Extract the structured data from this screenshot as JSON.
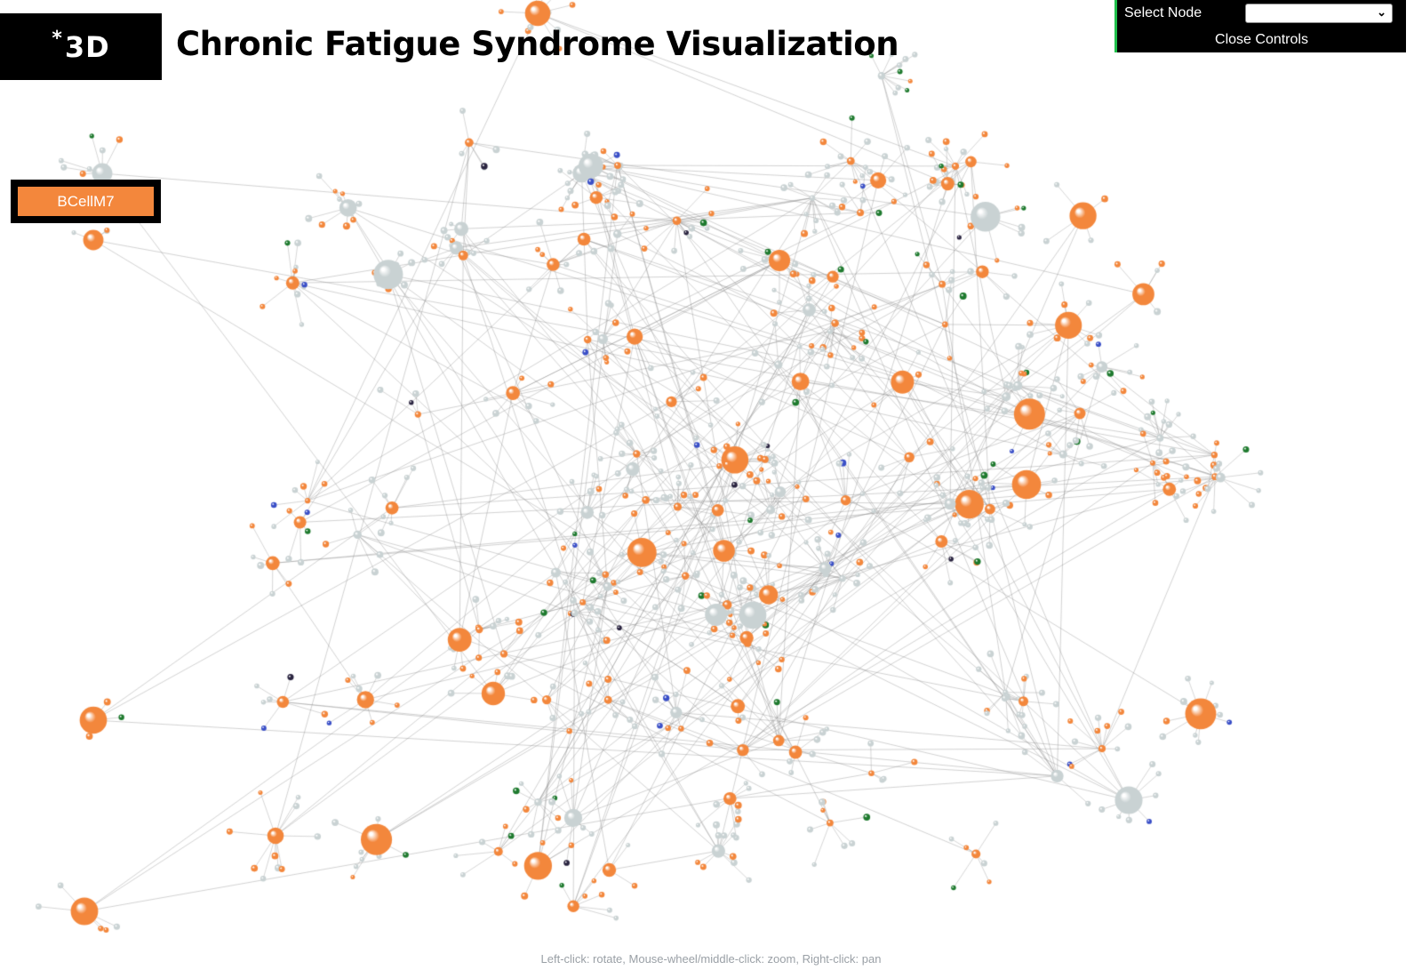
{
  "header": {
    "logo_star": "*",
    "logo_text": "3D",
    "title": "Chronic Fatigue Syndrome Visualization"
  },
  "controls": {
    "select_label": "Select Node",
    "select_value": "",
    "close_label": "Close Controls"
  },
  "selected_node": {
    "label": "BCellM7"
  },
  "footer": {
    "hint": "Left-click: rotate, Mouse-wheel/middle-click: zoom, Right-click: pan"
  },
  "graph": {
    "node_colors": {
      "primary": "#f3873c",
      "secondary": "#c9d2d3",
      "tertiary_green": "#1e7a2e",
      "tertiary_blue": "#3a4fc7",
      "tertiary_dark": "#2a2440"
    },
    "edge_color": "#8a8a8a",
    "background": "#ffffff"
  }
}
